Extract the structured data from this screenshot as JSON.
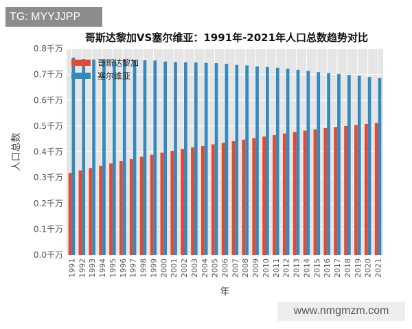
{
  "watermark_top": "TG: MYYJJPP",
  "watermark_bottom": "www.nmgmzm.com",
  "colors": {
    "costa_rica": "#e24a33",
    "serbia": "#348abd",
    "plot_bg": "#e5e5e5",
    "grid": "#ffffff"
  },
  "chart_data": {
    "type": "bar",
    "title": "哥斯达黎加VS塞尔维亚：1991年-2021年人口总数趋势对比",
    "xlabel": "年",
    "ylabel": "人口总数",
    "ylim": [
      0,
      0.8
    ],
    "yticks": [
      "0.0千万",
      "0.1千万",
      "0.2千万",
      "0.3千万",
      "0.4千万",
      "0.5千万",
      "0.6千万",
      "0.7千万",
      "0.8千万"
    ],
    "grid": true,
    "legend_position": "top-left",
    "categories": [
      "1991",
      "1992",
      "1993",
      "1994",
      "1995",
      "1996",
      "1997",
      "1998",
      "1999",
      "2000",
      "2001",
      "2002",
      "2003",
      "2004",
      "2005",
      "2006",
      "2007",
      "2008",
      "2009",
      "2010",
      "2011",
      "2012",
      "2013",
      "2014",
      "2015",
      "2016",
      "2017",
      "2018",
      "2019",
      "2020",
      "2021"
    ],
    "series": [
      {
        "name": "哥斯达黎加",
        "values": [
          0.318,
          0.328,
          0.337,
          0.346,
          0.355,
          0.364,
          0.372,
          0.381,
          0.389,
          0.397,
          0.404,
          0.411,
          0.417,
          0.423,
          0.429,
          0.435,
          0.441,
          0.447,
          0.453,
          0.459,
          0.465,
          0.471,
          0.477,
          0.482,
          0.487,
          0.492,
          0.496,
          0.5,
          0.504,
          0.508,
          0.512
        ]
      },
      {
        "name": "塞尔维亚",
        "values": [
          0.765,
          0.76,
          0.758,
          0.757,
          0.757,
          0.756,
          0.756,
          0.755,
          0.754,
          0.75,
          0.748,
          0.747,
          0.746,
          0.745,
          0.744,
          0.741,
          0.737,
          0.735,
          0.731,
          0.729,
          0.726,
          0.722,
          0.718,
          0.714,
          0.709,
          0.705,
          0.702,
          0.698,
          0.695,
          0.69,
          0.686
        ]
      }
    ]
  }
}
